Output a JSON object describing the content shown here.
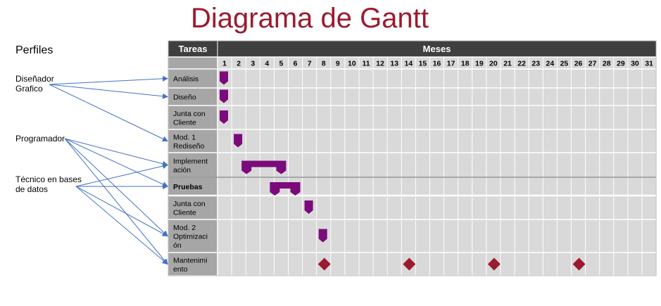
{
  "title": "Diagrama de Gantt",
  "profiles": {
    "heading": "Perfiles",
    "items": [
      {
        "lines": [
          "Diseñador",
          "Grafico"
        ]
      },
      {
        "lines": [
          "Programador"
        ]
      },
      {
        "lines": [
          "Técnico en bases",
          "de datos"
        ]
      }
    ]
  },
  "table": {
    "tasks_header": "Tareas",
    "months_header": "Meses",
    "days": [
      "1",
      "2",
      "3",
      "4",
      "5",
      "6",
      "7",
      "8",
      "9",
      "10",
      "11",
      "12",
      "13",
      "14",
      "15",
      "16",
      "17",
      "18",
      "19",
      "20",
      "21",
      "22",
      "23",
      "24",
      "25",
      "26",
      "27",
      "28",
      "29",
      "30",
      "31"
    ],
    "tasks": [
      {
        "lines": [
          "Análisis"
        ],
        "bold": false
      },
      {
        "lines": [
          "Diseño"
        ],
        "bold": false
      },
      {
        "lines": [
          "Junta con",
          "Cliente"
        ],
        "bold": false
      },
      {
        "lines": [
          "Mod. 1",
          "Rediseño"
        ],
        "bold": false
      },
      {
        "lines": [
          "Implement",
          "ación"
        ],
        "bold": false
      },
      {
        "lines": [
          "Pruebas"
        ],
        "bold": true
      },
      {
        "lines": [
          "Junta con",
          "Cliente"
        ],
        "bold": false
      },
      {
        "lines": [
          "Mod. 2",
          "Optimizaci",
          "ón"
        ],
        "bold": false
      },
      {
        "lines": [
          "Mantenimi",
          "ento"
        ],
        "bold": false
      }
    ]
  },
  "schedule": [
    {
      "task": 0,
      "type": "flag",
      "start": 1,
      "end": 1
    },
    {
      "task": 1,
      "type": "flag",
      "start": 1,
      "end": 1
    },
    {
      "task": 2,
      "type": "flag",
      "start": 1,
      "end": 1
    },
    {
      "task": 3,
      "type": "flag",
      "start": 2,
      "end": 2
    },
    {
      "task": 4,
      "type": "bar",
      "start": 3,
      "end": 5
    },
    {
      "task": 5,
      "type": "bar",
      "start": 5,
      "end": 6
    },
    {
      "task": 6,
      "type": "flag",
      "start": 7,
      "end": 7
    },
    {
      "task": 7,
      "type": "flag",
      "start": 8,
      "end": 8
    },
    {
      "task": 8,
      "type": "milestone",
      "at": 8
    },
    {
      "task": 8,
      "type": "milestone",
      "at": 14
    },
    {
      "task": 8,
      "type": "milestone",
      "at": 20
    },
    {
      "task": 8,
      "type": "milestone",
      "at": 26
    }
  ],
  "assignments": [
    {
      "profile": 0,
      "task": 0
    },
    {
      "profile": 0,
      "task": 1
    },
    {
      "profile": 0,
      "task": 3
    },
    {
      "profile": 1,
      "task": 4
    },
    {
      "profile": 1,
      "task": 5
    },
    {
      "profile": 1,
      "task": 7
    },
    {
      "profile": 1,
      "task": 8
    },
    {
      "profile": 2,
      "task": 4
    },
    {
      "profile": 2,
      "task": 5
    },
    {
      "profile": 2,
      "task": 7
    },
    {
      "profile": 2,
      "task": 8
    }
  ],
  "colors": {
    "title": "#9b1a2f",
    "header_bg": "#3f3f3f",
    "task_col_bg": "#a6a6a6",
    "grid_bg": "#d9d9d9",
    "task_bar": "#7b0a7b",
    "milestone": "#9b1a2f",
    "arrow": "#4472c4"
  }
}
